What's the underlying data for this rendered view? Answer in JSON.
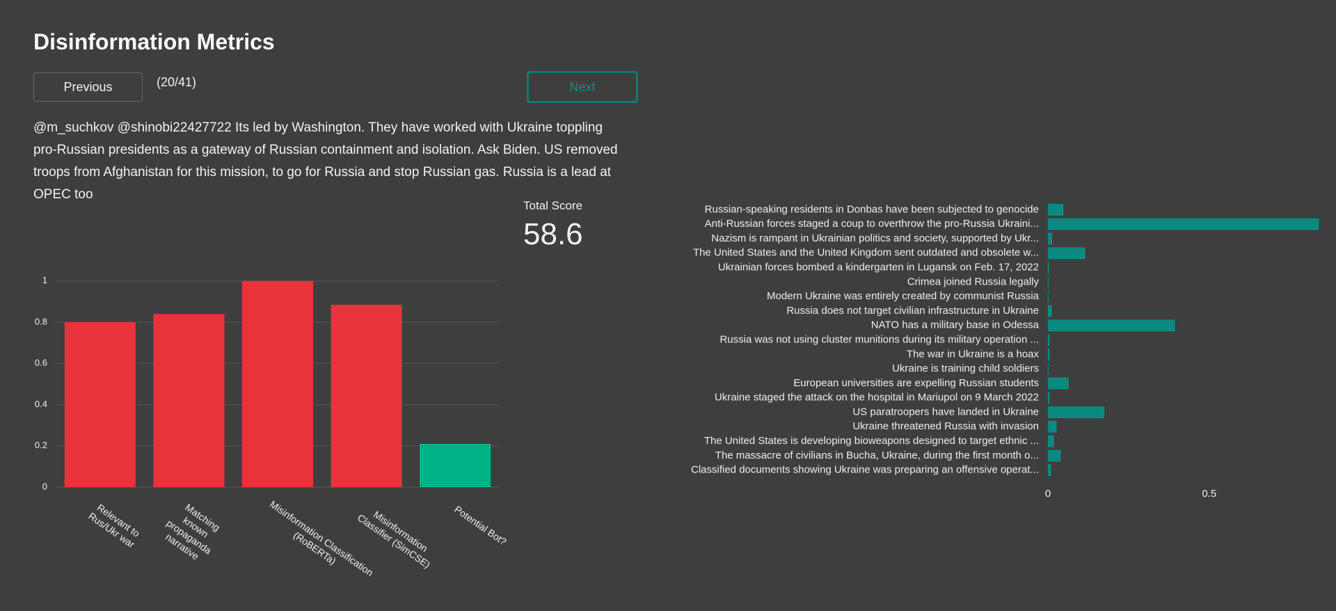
{
  "title": "Disinformation Metrics",
  "buttons": {
    "previous": "Previous",
    "next": "Next"
  },
  "counter": "(20/41)",
  "text": "@m_suchkov @shinobi22427722 Its led by Washington. They have worked with Ukraine toppling pro-Russian presidents as a gateway of Russian containment and isolation. Ask Biden. US removed troops from Afghanistan for this mission, to go for Russia and stop Russian gas. Russia is a lead at OPEC too",
  "total_score": {
    "label": "Total Score",
    "value": 58.6
  },
  "chart_data": [
    {
      "type": "bar",
      "categories": [
        "Relevant to Rus/Ukr war",
        "Matching known propaganda narrative",
        "Misinformation Classification (RoBERTa)",
        "Misinformation Classifier (SimCSE)",
        "Potential Bot?"
      ],
      "values": [
        0.8,
        0.84,
        1,
        0.885,
        0.21
      ],
      "colors": [
        "#e8333d",
        "#e8333d",
        "#e8333d",
        "#e8333d",
        "#00b386"
      ],
      "ylim": [
        0,
        1.05
      ],
      "yticks": [
        0,
        0.2,
        0.4,
        0.6,
        0.8,
        1
      ],
      "grid": true
    },
    {
      "type": "barh",
      "categories": [
        "Russian-speaking residents in Donbas have been subjected to genocide",
        "Anti-Russian forces staged a coup to overthrow the pro-Russia Ukraini...",
        "Nazism is rampant in Ukrainian politics and society, supported by Ukr...",
        "The United States and the United Kingdom sent outdated and obsolete w...",
        "Ukrainian forces bombed a kindergarten in Lugansk on Feb. 17, 2022",
        "Crimea joined Russia legally",
        "Modern Ukraine was entirely created by communist Russia",
        "Russia does not target civilian infrastructure in Ukraine",
        "NATO has a military base in Odessa",
        "Russia was not using cluster munitions during its military operation ...",
        "The war in Ukraine is a hoax",
        "Ukraine is training child soldiers",
        "European universities are expelling Russian students",
        "Ukraine staged the attack on the hospital in Mariupol on 9 March 2022",
        "US paratroopers have landed in Ukraine",
        "Ukraine threatened Russia with invasion",
        "The United States is developing bioweapons designed to target ethnic ...",
        "The massacre of civilians in Bucha, Ukraine, during the first month o...",
        "Classified documents showing Ukraine was preparing an offensive operat..."
      ],
      "values": [
        0.048,
        0.84,
        0.013,
        0.116,
        0.003,
        0.002,
        0.002,
        0.012,
        0.394,
        0.005,
        0.005,
        0.002,
        0.064,
        0.005,
        0.175,
        0.027,
        0.019,
        0.04,
        0.01
      ],
      "color": "#0a8a80",
      "xlim": [
        0,
        0.85
      ],
      "xticks": [
        0,
        0.5
      ],
      "grid": false
    }
  ]
}
